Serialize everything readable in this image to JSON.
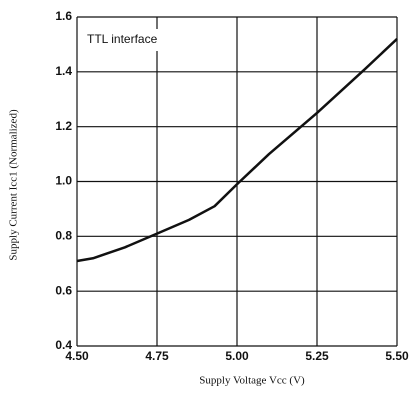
{
  "chart_data": {
    "type": "line",
    "annotation": "TTL interface",
    "x_label": "Supply Voltage Vcc  (V)",
    "y_label": "Supply Current Icc1  (Normalized)",
    "x": [
      4.5,
      4.55,
      4.65,
      4.75,
      4.85,
      4.93,
      5.0,
      5.1,
      5.25,
      5.4,
      5.5
    ],
    "series": [
      {
        "color": "#111111",
        "values": [
          0.71,
          0.72,
          0.76,
          0.81,
          0.86,
          0.91,
          0.99,
          1.1,
          1.25,
          1.41,
          1.52
        ]
      }
    ],
    "xlim": [
      4.5,
      5.5
    ],
    "xticks": [
      {
        "value": 4.5,
        "label": "4.50"
      },
      4.75,
      {
        "value": 5.0,
        "label": "5.00"
      },
      5.25,
      {
        "value": 5.5,
        "label": "5.50"
      }
    ],
    "ylim": [
      0.4,
      1.6
    ],
    "yticks": [
      0.4,
      0.6,
      0.8,
      {
        "value": 1.0,
        "label": "1.0"
      },
      1.2,
      1.4,
      1.6
    ],
    "grid": true
  }
}
